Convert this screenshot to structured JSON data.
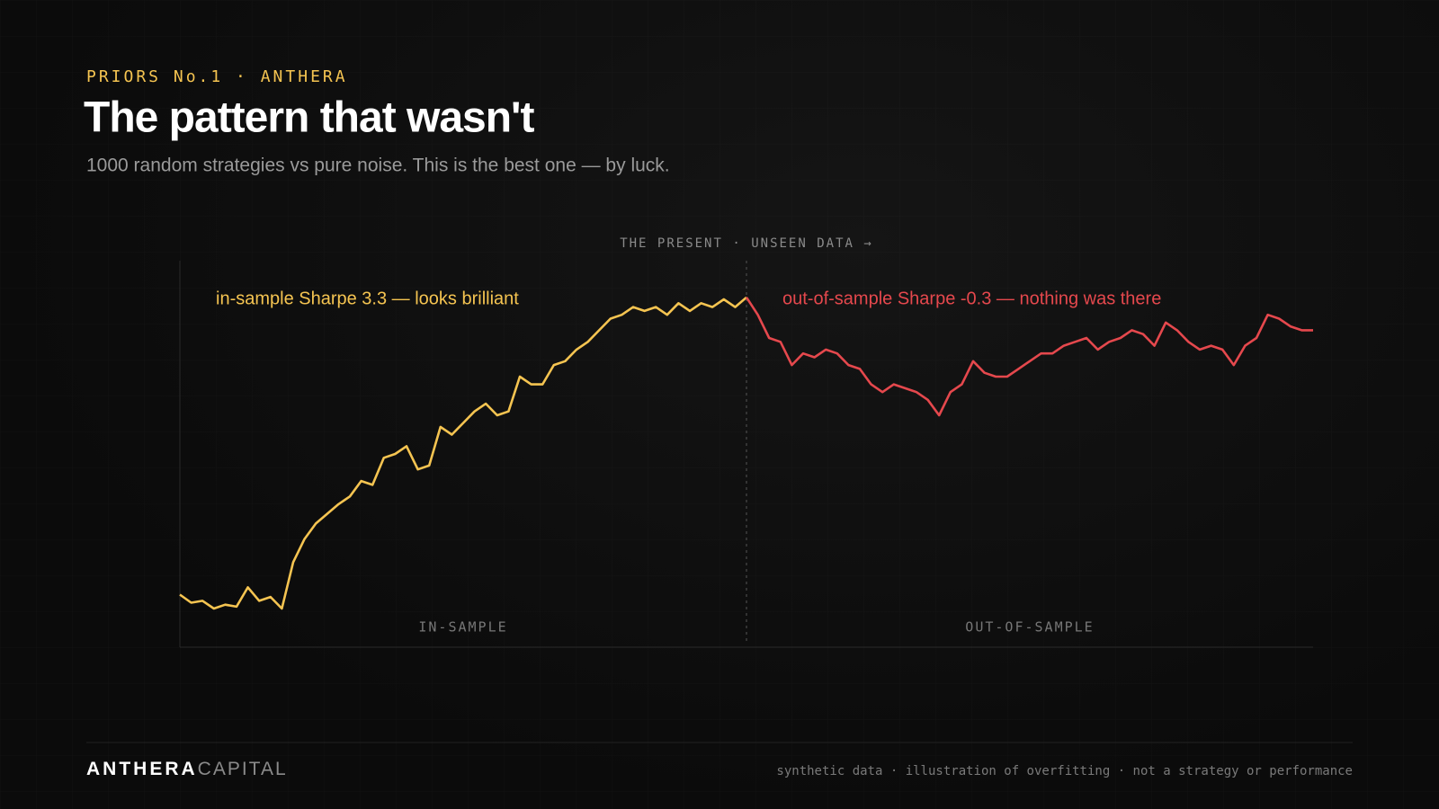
{
  "header": {
    "kicker": "PRIORS No.1 · ANTHERA",
    "title": "The pattern that wasn't",
    "subtitle": "1000 random strategies vs pure noise. This is the best one — by luck."
  },
  "chart_data": {
    "type": "line",
    "xlim": [
      0,
      100
    ],
    "ylim": [
      0,
      100
    ],
    "marker": {
      "x": 50,
      "label": "THE PRESENT · UNSEEN DATA →"
    },
    "series": [
      {
        "name": "IN-SAMPLE",
        "color": "#f5c451",
        "annotation": "in-sample Sharpe 3.3 — looks brilliant",
        "x": [
          0,
          1,
          2,
          3,
          4,
          5,
          6,
          7,
          8,
          9,
          10,
          11,
          12,
          13,
          14,
          15,
          16,
          17,
          18,
          19,
          20,
          21,
          22,
          23,
          24,
          25,
          26,
          27,
          28,
          29,
          30,
          31,
          32,
          33,
          34,
          35,
          36,
          37,
          38,
          39,
          40,
          41,
          42,
          43,
          44,
          45,
          46,
          47,
          48,
          49,
          50
        ],
        "values": [
          13.6,
          11.5,
          12,
          10,
          11,
          10.5,
          15.5,
          12,
          13,
          10,
          22,
          28,
          32,
          34.5,
          37,
          39,
          43,
          42,
          49,
          50,
          52,
          46,
          47,
          57,
          55,
          58,
          61,
          63,
          60,
          61,
          70,
          68,
          68,
          73,
          74,
          77,
          79,
          82,
          85,
          86,
          88,
          87,
          88,
          86,
          89,
          87,
          89,
          88,
          90,
          88,
          90.5
        ]
      },
      {
        "name": "OUT-OF-SAMPLE",
        "color": "#e5484d",
        "annotation": "out-of-sample Sharpe -0.3 — nothing was there",
        "x": [
          50,
          51,
          52,
          53,
          54,
          55,
          56,
          57,
          58,
          59,
          60,
          61,
          62,
          63,
          64,
          65,
          66,
          67,
          68,
          69,
          70,
          71,
          72,
          73,
          74,
          75,
          76,
          77,
          78,
          79,
          80,
          81,
          82,
          83,
          84,
          85,
          86,
          87,
          88,
          89,
          90,
          91,
          92,
          93,
          94,
          95,
          96,
          97,
          98,
          99,
          100
        ],
        "values": [
          90.5,
          86,
          80,
          79,
          73,
          76,
          75,
          77,
          76,
          73,
          72,
          68,
          66,
          68,
          67,
          66,
          64,
          60,
          66,
          68,
          74,
          71,
          70,
          70,
          72,
          74,
          76,
          76,
          78,
          79,
          80,
          77,
          79,
          80,
          82,
          81,
          78,
          84,
          82,
          79,
          77,
          78,
          77,
          73,
          78,
          80,
          86,
          85,
          83,
          82,
          82
        ]
      }
    ]
  },
  "footer": {
    "brand_bold": "ANTHERA",
    "brand_light": "CAPITAL",
    "note": "synthetic data · illustration of overfitting · not a strategy or performance"
  }
}
